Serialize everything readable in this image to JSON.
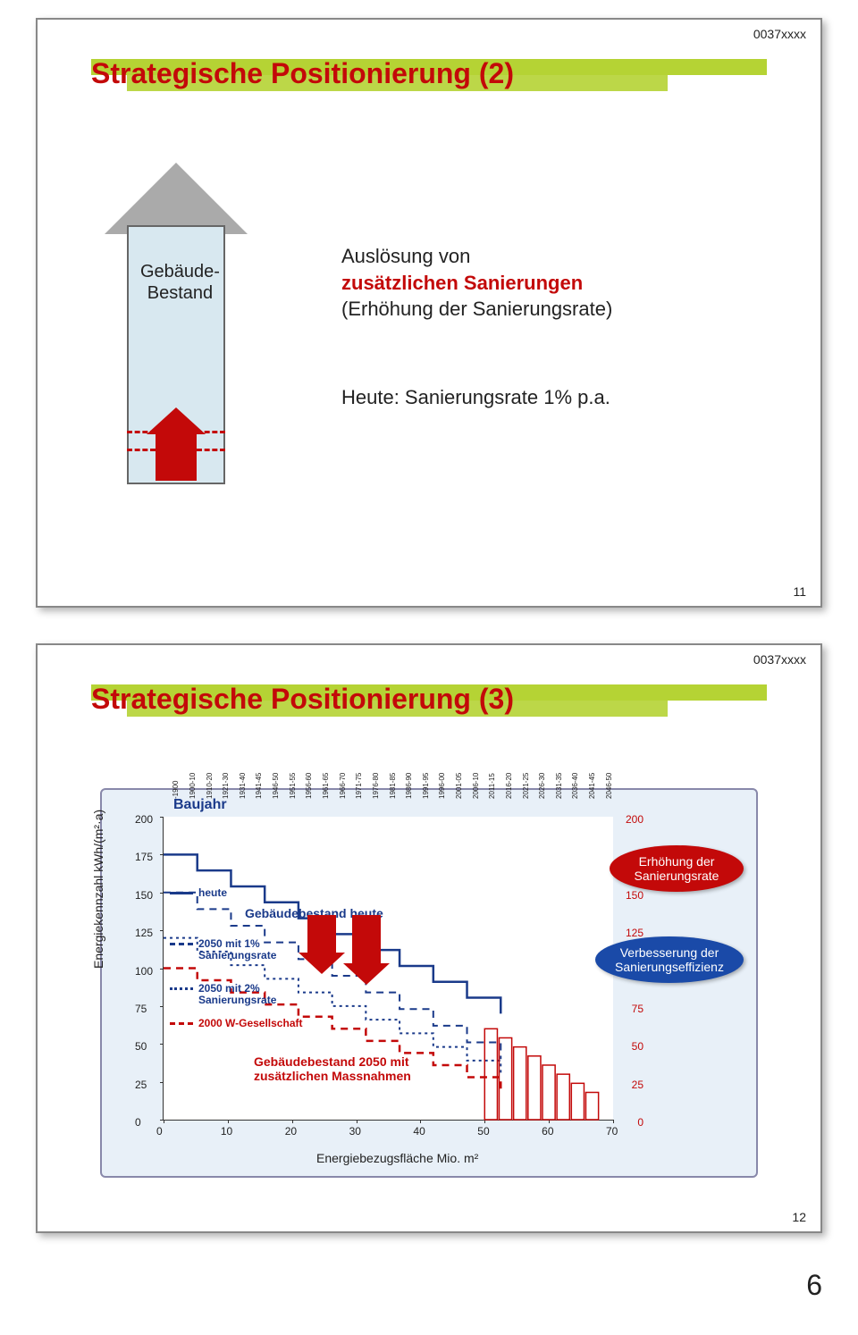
{
  "doc_code": "0037xxxx",
  "page_footer": "6",
  "slide1": {
    "number": "11",
    "title": "Strategische Positionierung (2)",
    "building_label_l1": "Gebäude-",
    "building_label_l2": "Bestand",
    "text1_l1": "Auslösung von",
    "text1_l2": "zusätzlichen Sanierungen",
    "text1_l3": "(Erhöung der Sanierungsrate)",
    "text1_l3b": "(Erhöhung der Sanierungsrate)",
    "text2": "Heute: Sanierungsrate 1% p.a."
  },
  "slide2": {
    "number": "12",
    "title": "Strategische Positionierung (3)",
    "baujahr": "Baujahr",
    "ylabel": "Energiekennzahl kWh/(m²·a)",
    "xlabel": "Energiebezugsfläche Mio. m²",
    "ylim": [
      0,
      200
    ],
    "ytick_step": 25,
    "xlim": [
      0,
      70
    ],
    "xtick_step": 10,
    "y2_ticks": [
      0,
      25,
      50,
      75,
      100,
      125,
      150,
      175,
      200
    ],
    "x_categories": [
      "-1900",
      "1900-10",
      "1910-20",
      "1921-30",
      "1931-40",
      "1941-45",
      "1946-50",
      "1951-55",
      "1956-60",
      "1961-65",
      "1966-70",
      "1971-75",
      "1976-80",
      "1981-85",
      "1986-90",
      "1991-95",
      "1996-00",
      "2001-05",
      "2006-10",
      "2011-15",
      "2016-20",
      "2021-25",
      "2026-30",
      "2031-35",
      "2036-40",
      "2041-45",
      "2046-50"
    ],
    "legend": {
      "heute": "heute",
      "s1pct_l1": "2050 mit 1%",
      "s1pct_l2": "Sanierungsrate",
      "s2pct_l1": "2050 mit 2%",
      "s2pct_l2": "Sanierungsrate",
      "w2000": "2000 W-Gesellschaft"
    },
    "chart_labels": {
      "top": "Gebäudebestand heute",
      "bottom_l1": "Gebäudebestand 2050 mit",
      "bottom_l2": "zusätzlichen Massnahmen"
    },
    "callouts": {
      "red_l1": "Erhöhung der",
      "red_l2": "Sanierungsrate",
      "blue_l1": "Verbesserung der",
      "blue_l2": "Sanierungseffizienz"
    },
    "series_lines": {
      "heute": {
        "color": "#1a3a8a",
        "style": "solid",
        "y_from": 175,
        "y_to": 70,
        "breaks": [
          0,
          8,
          14,
          22,
          30,
          38,
          44,
          50
        ]
      },
      "s1pct": {
        "color": "#1a3a8a",
        "style": "dashed",
        "y_from": 150,
        "y_to": 40
      },
      "s2pct": {
        "color": "#1a3a8a",
        "style": "dotted",
        "y_from": 120,
        "y_to": 30
      },
      "w2000": {
        "color": "#c30909",
        "style": "dashed",
        "y_from": 100,
        "y_to": 20
      },
      "bars": {
        "color": "#c30909",
        "fill": "#ffeaea",
        "x_from": 50,
        "x_to": 68
      }
    },
    "plot_bg": "#ffffff",
    "panel_bg": "#e8f0f8",
    "accent_red": "#c30909",
    "accent_blue": "#1a3a8a"
  }
}
